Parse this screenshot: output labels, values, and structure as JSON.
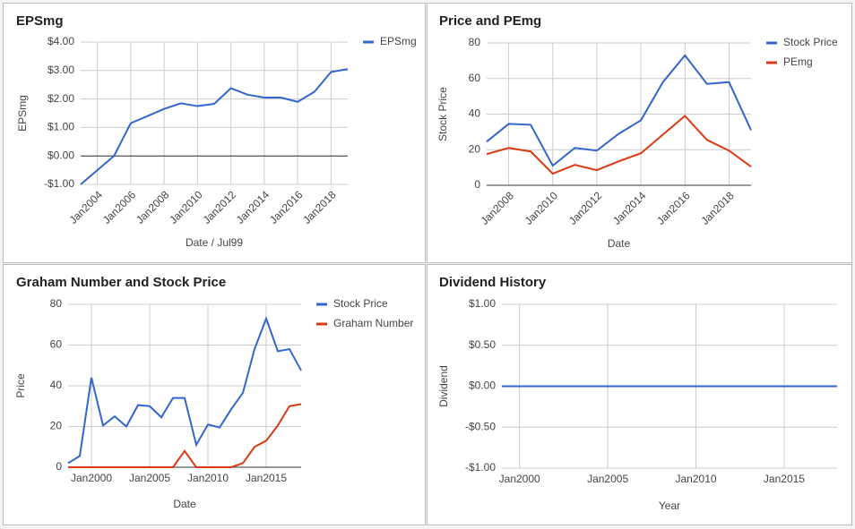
{
  "chart_data": [
    {
      "type": "line",
      "title": "EPSmg",
      "x_label": "Date / Jul99",
      "y_label": "EPSmg",
      "x": [
        2003,
        2004,
        2005,
        2006,
        2007,
        2008,
        2009,
        2010,
        2011,
        2012,
        2013,
        2014,
        2015,
        2016,
        2017,
        2018,
        2019
      ],
      "series": [
        {
          "name": "EPSmg",
          "color": "#3366cc",
          "values": [
            -1.0,
            -0.5,
            0.0,
            1.15,
            1.4,
            1.65,
            1.85,
            1.75,
            1.83,
            2.38,
            2.15,
            2.05,
            2.05,
            1.9,
            2.25,
            2.95,
            3.05
          ]
        }
      ],
      "xlim": [
        2003,
        2019
      ],
      "xticks": [
        {
          "value": 2004,
          "label": "Jan2004"
        },
        {
          "value": 2006,
          "label": "Jan2006"
        },
        {
          "value": 2008,
          "label": "Jan2008"
        },
        {
          "value": 2010,
          "label": "Jan2010"
        },
        {
          "value": 2012,
          "label": "Jan2012"
        },
        {
          "value": 2014,
          "label": "Jan2014"
        },
        {
          "value": 2016,
          "label": "Jan2016"
        },
        {
          "value": 2018,
          "label": "Jan2018"
        }
      ],
      "ylim": [
        -1,
        4
      ],
      "yticks": [
        {
          "value": 4,
          "label": "$4.00"
        },
        {
          "value": 3,
          "label": "$3.00"
        },
        {
          "value": 2,
          "label": "$2.00"
        },
        {
          "value": 1,
          "label": "$1.00"
        },
        {
          "value": 0,
          "label": "$0.00"
        },
        {
          "value": -1,
          "label": "-$1.00"
        }
      ],
      "grid": true,
      "legend": "right"
    },
    {
      "type": "line",
      "title": "Price and PEmg",
      "x_label": "Date",
      "y_label": "Stock Price",
      "x": [
        2007,
        2008,
        2009,
        2010,
        2011,
        2012,
        2013,
        2014,
        2015,
        2016,
        2017,
        2018,
        2019
      ],
      "series": [
        {
          "name": "Stock Price",
          "color": "#3366cc",
          "values": [
            24.5,
            34.5,
            34,
            11,
            21,
            19.5,
            29,
            36.5,
            58,
            73,
            57,
            58,
            31
          ]
        },
        {
          "name": "PEmg",
          "color": "#dc3912",
          "values": [
            17.5,
            21,
            19,
            6.5,
            11.5,
            8.5,
            13.5,
            18,
            28.5,
            39,
            25.5,
            19.5,
            10.5
          ]
        }
      ],
      "xlim": [
        2007,
        2019
      ],
      "xticks": [
        {
          "value": 2008,
          "label": "Jan2008"
        },
        {
          "value": 2010,
          "label": "Jan2010"
        },
        {
          "value": 2012,
          "label": "Jan2012"
        },
        {
          "value": 2014,
          "label": "Jan2014"
        },
        {
          "value": 2016,
          "label": "Jan2016"
        },
        {
          "value": 2018,
          "label": "Jan2018"
        }
      ],
      "ylim": [
        0,
        80
      ],
      "yticks": [
        80,
        60,
        40,
        20,
        0
      ],
      "grid": true,
      "legend": "right"
    },
    {
      "type": "line",
      "title": "Graham Number and Stock Price",
      "x_label": "Date",
      "y_label": "Price",
      "x": [
        1998,
        1999,
        2000,
        2001,
        2002,
        2003,
        2004,
        2005,
        2006,
        2007,
        2008,
        2009,
        2010,
        2011,
        2012,
        2013,
        2014,
        2015,
        2016,
        2017,
        2018
      ],
      "series": [
        {
          "name": "Stock Price",
          "color": "#3366cc",
          "values": [
            2,
            5.5,
            44,
            20.5,
            25,
            20,
            30.5,
            30,
            24.5,
            34,
            34,
            11,
            21,
            19.5,
            28.5,
            36.5,
            58,
            73,
            57,
            58,
            47.5
          ]
        },
        {
          "name": "Graham Number",
          "color": "#dc3912",
          "values": [
            0,
            0,
            0,
            0,
            0,
            0,
            0,
            0,
            0,
            0,
            8,
            0,
            0,
            0,
            0,
            2,
            10,
            13,
            20.5,
            30,
            31
          ]
        }
      ],
      "xlim": [
        1998,
        2018
      ],
      "xticks": [
        {
          "value": 2000,
          "label": "Jan2000"
        },
        {
          "value": 2005,
          "label": "Jan2005"
        },
        {
          "value": 2010,
          "label": "Jan2010"
        },
        {
          "value": 2015,
          "label": "Jan2015"
        }
      ],
      "ylim": [
        0,
        80
      ],
      "yticks": [
        80,
        60,
        40,
        20,
        0
      ],
      "grid": true,
      "legend": "right"
    },
    {
      "type": "line",
      "title": "Dividend History",
      "x_label": "Year",
      "y_label": "Dividend",
      "x": [
        1999,
        2000,
        2001,
        2002,
        2003,
        2004,
        2005,
        2006,
        2007,
        2008,
        2009,
        2010,
        2011,
        2012,
        2013,
        2014,
        2015,
        2016,
        2017,
        2018
      ],
      "series": [
        {
          "color": "#3366cc",
          "values": [
            0,
            0,
            0,
            0,
            0,
            0,
            0,
            0,
            0,
            0,
            0,
            0,
            0,
            0,
            0,
            0,
            0,
            0,
            0,
            0
          ]
        }
      ],
      "xlim": [
        1999,
        2018
      ],
      "xticks": [
        {
          "value": 2000,
          "label": "Jan2000"
        },
        {
          "value": 2005,
          "label": "Jan2005"
        },
        {
          "value": 2010,
          "label": "Jan2010"
        },
        {
          "value": 2015,
          "label": "Jan2015"
        }
      ],
      "ylim": [
        -1,
        1
      ],
      "yticks": [
        {
          "value": 1,
          "label": "$1.00"
        },
        {
          "value": 0.5,
          "label": "$0.50"
        },
        {
          "value": 0,
          "label": "$0.00"
        },
        {
          "value": -0.5,
          "label": "-$0.50"
        },
        {
          "value": -1,
          "label": "-$1.00"
        }
      ],
      "grid": true
    }
  ]
}
